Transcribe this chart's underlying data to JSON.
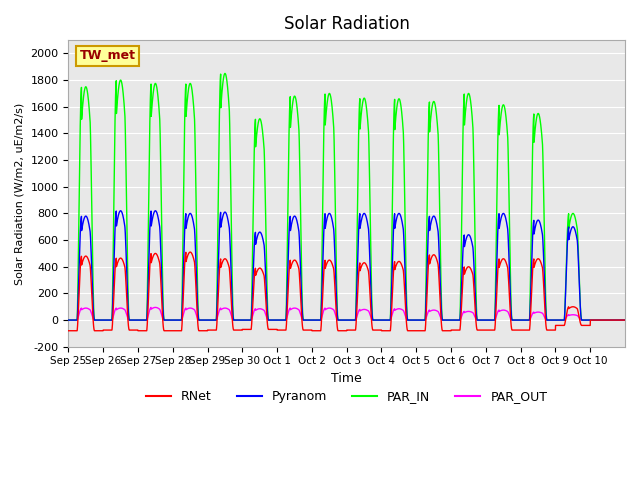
{
  "title": "Solar Radiation",
  "ylabel": "Solar Radiation (W/m2, uE/m2/s)",
  "xlabel": "Time",
  "ylim": [
    -200,
    2100
  ],
  "yticks": [
    -200,
    0,
    200,
    400,
    600,
    800,
    1000,
    1200,
    1400,
    1600,
    1800,
    2000
  ],
  "xtick_labels": [
    "Sep 25",
    "Sep 26",
    "Sep 27",
    "Sep 28",
    "Sep 29",
    "Sep 30",
    "Oct 1",
    "Oct 2",
    "Oct 3",
    "Oct 4",
    "Oct 5",
    "Oct 6",
    "Oct 7",
    "Oct 8",
    "Oct 9",
    "Oct 10"
  ],
  "colors": {
    "RNet": "#FF0000",
    "Pyranom": "#0000FF",
    "PAR_IN": "#00FF00",
    "PAR_OUT": "#FF00FF"
  },
  "bg_color": "#E8E8E8",
  "grid_color": "#FFFFFF",
  "site_label": "TW_met",
  "site_label_bg": "#FFFF99",
  "site_label_border": "#CC9900",
  "n_days": 16,
  "day_peaks": {
    "RNet": [
      480,
      465,
      500,
      510,
      460,
      390,
      450,
      450,
      430,
      440,
      490,
      400,
      460,
      460,
      100,
      0
    ],
    "Pyranom": [
      780,
      820,
      820,
      800,
      810,
      660,
      780,
      800,
      800,
      800,
      780,
      640,
      800,
      750,
      700,
      0
    ],
    "PAR_IN": [
      1750,
      1800,
      1775,
      1775,
      1850,
      1510,
      1680,
      1700,
      1665,
      1660,
      1640,
      1700,
      1615,
      1550,
      800,
      0
    ],
    "PAR_OUT": [
      90,
      90,
      95,
      90,
      90,
      85,
      90,
      90,
      80,
      85,
      75,
      65,
      75,
      60,
      40,
      0
    ],
    "RNet_neg": [
      -80,
      -75,
      -80,
      -80,
      -75,
      -70,
      -75,
      -80,
      -75,
      -80,
      -80,
      -75,
      -75,
      -75,
      -40,
      0
    ]
  }
}
